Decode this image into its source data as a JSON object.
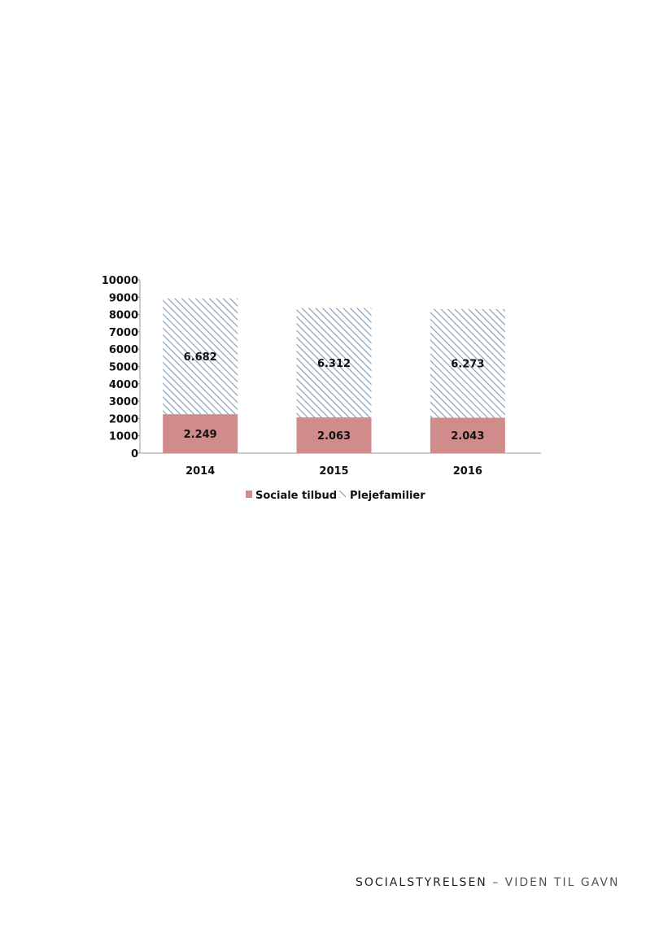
{
  "chart_data": {
    "type": "bar",
    "stacked": true,
    "categories": [
      "2014",
      "2015",
      "2016"
    ],
    "series": [
      {
        "name": "Sociale tilbud",
        "values": [
          2249,
          2063,
          2043
        ],
        "labels": [
          "2.249",
          "2.063",
          "2.043"
        ],
        "color": "#d08b8b",
        "fill": "solid"
      },
      {
        "name": "Plejefamilier",
        "values": [
          6682,
          6312,
          6273
        ],
        "labels": [
          "6.682",
          "6.312",
          "6.273"
        ],
        "color": "#7f9bb5",
        "fill": "diagonal-hatch"
      }
    ],
    "yticks": [
      "0",
      "1000",
      "2000",
      "3000",
      "4000",
      "5000",
      "6000",
      "7000",
      "8000",
      "9000",
      "10000"
    ],
    "ylim": [
      0,
      10000
    ],
    "grid": false,
    "legend_position": "bottom"
  },
  "footer": {
    "brand": "SOCIALSTYRELSEN",
    "separator": "–",
    "tagline": "VIDEN TIL GAVN"
  }
}
